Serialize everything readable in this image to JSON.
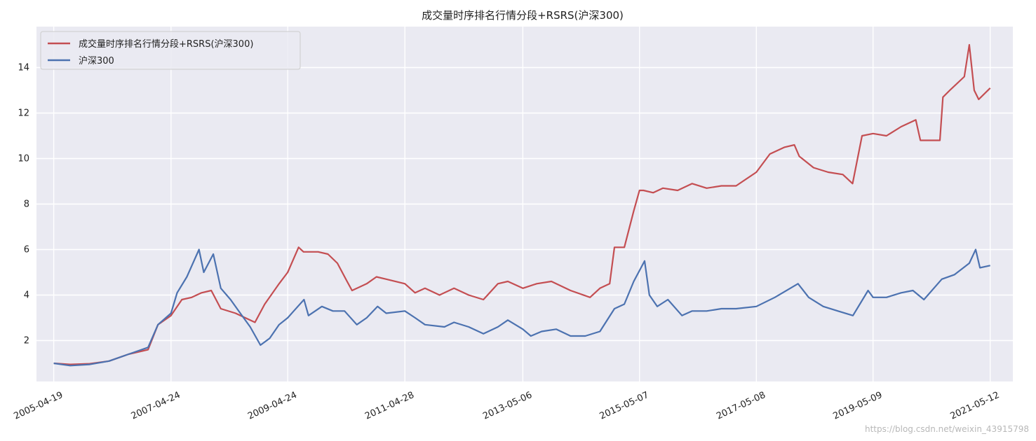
{
  "chart_data": {
    "type": "line",
    "title": "成交量时序排名行情分段+RSRS(沪深300)",
    "xlabel": "",
    "ylabel": "",
    "x_ticks": [
      "2005-04-19",
      "2007-04-24",
      "2009-04-24",
      "2011-04-28",
      "2013-05-06",
      "2015-05-07",
      "2017-05-08",
      "2019-05-09",
      "2021-05-12"
    ],
    "y_ticks": [
      2,
      4,
      6,
      8,
      10,
      12,
      14
    ],
    "xlim": [
      "2005-01-01",
      "2021-10-01"
    ],
    "ylim": [
      0.2,
      15.8
    ],
    "grid": true,
    "legend_position": "top-left",
    "series": [
      {
        "name": "成交量时序排名行情分段+RSRS(沪深300)",
        "color": "#c44e52",
        "x": [
          "2005-04-19",
          "2005-08-01",
          "2005-12-01",
          "2006-04-01",
          "2006-08-01",
          "2006-12-01",
          "2007-02-01",
          "2007-04-24",
          "2007-07-01",
          "2007-09-01",
          "2007-11-01",
          "2008-01-01",
          "2008-03-01",
          "2008-06-01",
          "2008-10-01",
          "2008-12-01",
          "2009-03-01",
          "2009-04-24",
          "2009-07-01",
          "2009-08-01",
          "2009-11-01",
          "2010-01-01",
          "2010-03-01",
          "2010-05-01",
          "2010-06-01",
          "2010-09-01",
          "2010-11-01",
          "2011-01-01",
          "2011-04-28",
          "2011-07-01",
          "2011-09-01",
          "2011-12-01",
          "2012-03-01",
          "2012-06-01",
          "2012-09-01",
          "2012-12-01",
          "2013-02-01",
          "2013-05-06",
          "2013-08-01",
          "2013-11-01",
          "2014-03-01",
          "2014-07-01",
          "2014-09-01",
          "2014-11-01",
          "2014-12-01",
          "2015-02-01",
          "2015-04-01",
          "2015-05-07",
          "2015-06-01",
          "2015-08-01",
          "2015-10-01",
          "2016-01-01",
          "2016-04-01",
          "2016-07-01",
          "2016-10-01",
          "2017-01-01",
          "2017-05-08",
          "2017-08-01",
          "2017-11-01",
          "2018-01-01",
          "2018-02-01",
          "2018-05-01",
          "2018-08-01",
          "2018-11-01",
          "2019-01-01",
          "2019-03-01",
          "2019-05-09",
          "2019-08-01",
          "2019-11-01",
          "2020-02-01",
          "2020-03-01",
          "2020-07-01",
          "2020-07-20",
          "2020-09-01",
          "2020-12-01",
          "2021-01-01",
          "2021-02-01",
          "2021-03-01",
          "2021-05-12"
        ],
        "values": [
          1.0,
          0.95,
          0.98,
          1.1,
          1.4,
          1.6,
          2.7,
          3.1,
          3.8,
          3.9,
          4.1,
          4.2,
          3.4,
          3.2,
          2.8,
          3.6,
          4.5,
          5.0,
          6.1,
          5.9,
          5.9,
          5.8,
          5.4,
          4.6,
          4.2,
          4.5,
          4.8,
          4.7,
          4.5,
          4.1,
          4.3,
          4.0,
          4.3,
          4.0,
          3.8,
          4.5,
          4.6,
          4.3,
          4.5,
          4.6,
          4.2,
          3.9,
          4.3,
          4.5,
          6.1,
          6.1,
          7.7,
          8.6,
          8.6,
          8.5,
          8.7,
          8.6,
          8.9,
          8.7,
          8.8,
          8.8,
          9.4,
          10.2,
          10.5,
          10.6,
          10.1,
          9.6,
          9.4,
          9.3,
          8.9,
          11.0,
          11.1,
          11.0,
          11.4,
          11.7,
          10.8,
          10.8,
          12.7,
          13.0,
          13.6,
          15.0,
          13.0,
          12.6,
          13.1
        ]
      },
      {
        "name": "沪深300",
        "color": "#4c72b0",
        "x": [
          "2005-04-19",
          "2005-08-01",
          "2005-12-01",
          "2006-04-01",
          "2006-08-01",
          "2006-12-01",
          "2007-02-01",
          "2007-04-24",
          "2007-06-01",
          "2007-08-01",
          "2007-10-16",
          "2007-11-15",
          "2008-01-14",
          "2008-03-01",
          "2008-05-01",
          "2008-07-01",
          "2008-09-01",
          "2008-11-04",
          "2009-01-01",
          "2009-03-01",
          "2009-04-24",
          "2009-06-01",
          "2009-08-04",
          "2009-09-01",
          "2009-11-24",
          "2010-02-01",
          "2010-04-15",
          "2010-07-01",
          "2010-09-01",
          "2010-11-08",
          "2011-01-01",
          "2011-04-28",
          "2011-07-01",
          "2011-09-01",
          "2012-01-01",
          "2012-03-01",
          "2012-06-01",
          "2012-09-01",
          "2012-12-01",
          "2013-02-01",
          "2013-05-06",
          "2013-06-25",
          "2013-09-01",
          "2013-12-01",
          "2014-03-01",
          "2014-06-01",
          "2014-09-01",
          "2014-12-01",
          "2015-02-01",
          "2015-04-01",
          "2015-06-08",
          "2015-07-08",
          "2015-08-26",
          "2015-11-01",
          "2016-01-28",
          "2016-04-01",
          "2016-07-01",
          "2016-10-01",
          "2017-01-01",
          "2017-05-08",
          "2017-09-01",
          "2018-01-24",
          "2018-04-01",
          "2018-07-01",
          "2018-10-01",
          "2019-01-03",
          "2019-04-08",
          "2019-05-09",
          "2019-08-01",
          "2019-11-01",
          "2020-01-14",
          "2020-03-23",
          "2020-07-13",
          "2020-10-01",
          "2021-01-01",
          "2021-02-10",
          "2021-03-09",
          "2021-05-12"
        ],
        "values": [
          1.0,
          0.9,
          0.95,
          1.1,
          1.4,
          1.7,
          2.7,
          3.2,
          4.1,
          4.8,
          6.0,
          5.0,
          5.8,
          4.3,
          3.8,
          3.2,
          2.6,
          1.8,
          2.1,
          2.7,
          3.0,
          3.3,
          3.8,
          3.1,
          3.5,
          3.3,
          3.3,
          2.7,
          3.0,
          3.5,
          3.2,
          3.3,
          3.0,
          2.7,
          2.6,
          2.8,
          2.6,
          2.3,
          2.6,
          2.9,
          2.5,
          2.2,
          2.4,
          2.5,
          2.2,
          2.2,
          2.4,
          3.4,
          3.6,
          4.6,
          5.5,
          4.0,
          3.5,
          3.8,
          3.1,
          3.3,
          3.3,
          3.4,
          3.4,
          3.5,
          3.9,
          4.5,
          3.9,
          3.5,
          3.3,
          3.1,
          4.2,
          3.9,
          3.9,
          4.1,
          4.2,
          3.8,
          4.7,
          4.9,
          5.4,
          6.0,
          5.2,
          5.3
        ]
      }
    ]
  },
  "watermark": "https://blog.csdn.net/weixin_43915798"
}
